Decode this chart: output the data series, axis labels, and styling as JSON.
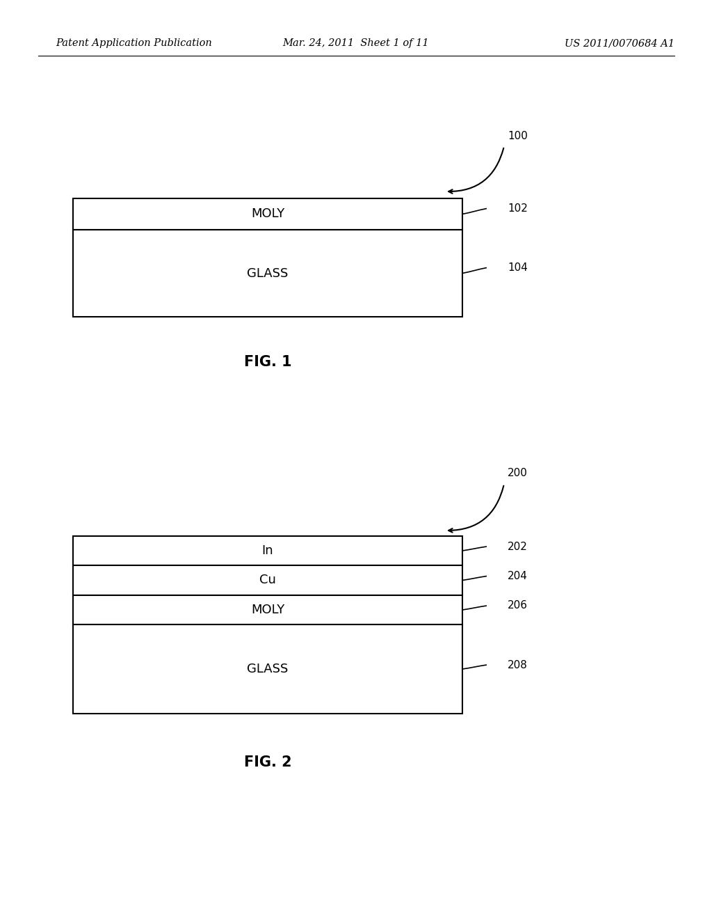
{
  "background_color": "#ffffff",
  "header_left": "Patent Application Publication",
  "header_mid": "Mar. 24, 2011  Sheet 1 of 11",
  "header_right": "US 2011/0070684 A1",
  "header_fontsize": 10.5,
  "fig1": {
    "label": "FIG. 1",
    "ref_main": "100",
    "layers": [
      {
        "label": "MOLY",
        "ref": "102"
      },
      {
        "label": "GLASS",
        "ref": "104"
      }
    ]
  },
  "fig2": {
    "label": "FIG. 2",
    "ref_main": "200",
    "layers": [
      {
        "label": "In",
        "ref": "202"
      },
      {
        "label": "Cu",
        "ref": "204"
      },
      {
        "label": "MOLY",
        "ref": "206"
      },
      {
        "label": "GLASS",
        "ref": "208"
      }
    ]
  },
  "layer_text_fontsize": 13,
  "ref_text_fontsize": 11,
  "fig_label_fontsize": 15
}
